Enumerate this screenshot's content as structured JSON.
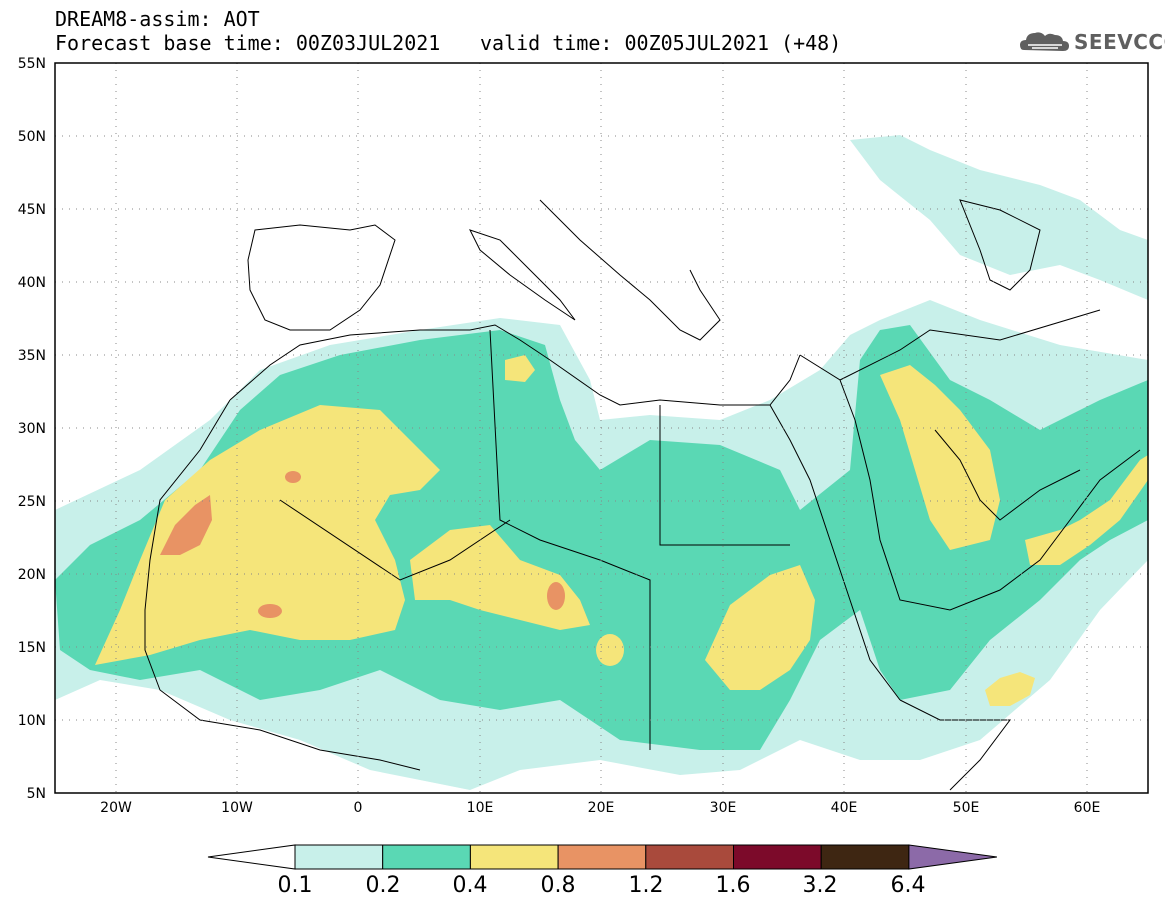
{
  "header": {
    "title": "DREAM8-assim: AOT",
    "base_time": "Forecast base time: 00Z03JUL2021",
    "valid_time": "valid time: 00Z05JUL2021 (+48)"
  },
  "logo": {
    "text": "SEEVCCC",
    "icon": "cloud-icon"
  },
  "map": {
    "lat_labels": [
      "55N",
      "50N",
      "45N",
      "40N",
      "35N",
      "30N",
      "25N",
      "20N",
      "15N",
      "10N",
      "5N"
    ],
    "lon_labels": [
      "20W",
      "10W",
      "0",
      "10E",
      "20E",
      "30E",
      "40E",
      "50E",
      "60E"
    ]
  },
  "colorbar": {
    "labels": [
      "0.1",
      "0.2",
      "0.4",
      "0.8",
      "1.2",
      "1.6",
      "3.2",
      "6.4"
    ],
    "colors": [
      "#ffffff",
      "#c8f0ea",
      "#5ad8b4",
      "#f5e57a",
      "#e89364",
      "#a94a3c",
      "#7c0a2a",
      "#3e2612",
      "#8c6aa8"
    ]
  }
}
